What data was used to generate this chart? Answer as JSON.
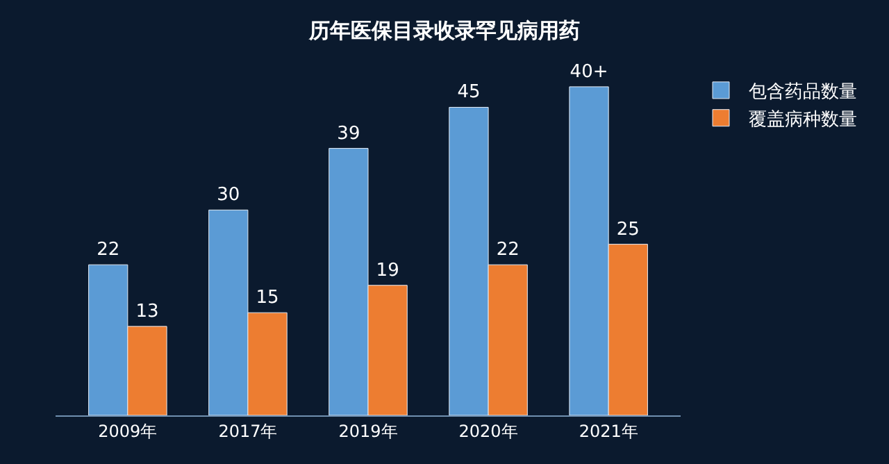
{
  "chart_data": {
    "type": "bar",
    "title": "历年医保目录收录罕见病用药",
    "categories": [
      "2009年",
      "2017年",
      "2019年",
      "2020年",
      "2021年"
    ],
    "series": [
      {
        "name": "包含药品数量",
        "color": "#5b9bd5",
        "values": [
          22,
          30,
          39,
          45,
          48
        ],
        "value_labels": [
          "22",
          "30",
          "39",
          "45",
          "40+"
        ]
      },
      {
        "name": "覆盖病种数量",
        "color": "#ed7d31",
        "values": [
          13,
          15,
          19,
          22,
          25
        ],
        "value_labels": [
          "13",
          "15",
          "19",
          "22",
          "25"
        ]
      }
    ],
    "tick_labels": "x",
    "legend": "top right"
  }
}
